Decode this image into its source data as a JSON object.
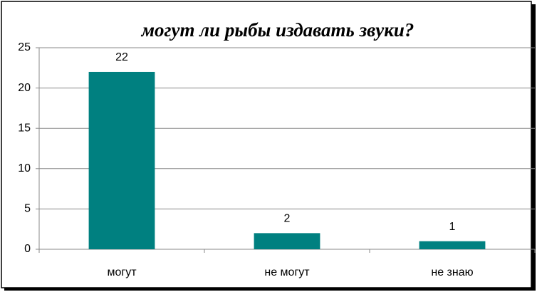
{
  "chart_data": {
    "type": "bar",
    "title": "могут ли рыбы издавать звуки?",
    "categories": [
      "могут",
      "не могут",
      "не знаю"
    ],
    "values": [
      22,
      2,
      1
    ],
    "color": "#008080",
    "ylim": [
      0,
      25
    ],
    "yticks": [
      0,
      5,
      10,
      15,
      20,
      25
    ],
    "grid": true,
    "data_labels": true
  }
}
